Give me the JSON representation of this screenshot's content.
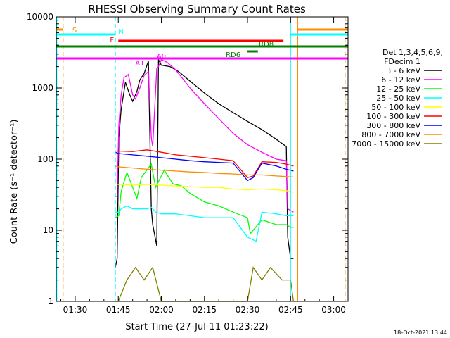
{
  "chart_data": {
    "type": "line",
    "title": "RHESSI Observing Summary Count Rates",
    "xlabel": "Start Time (27-Jul-11 01:23:22)",
    "ylabel": "Count Rate (s⁻¹ detector⁻¹)",
    "yscale": "log",
    "xlim_minutes": [
      83.4,
      185
    ],
    "ylim": [
      1,
      10000
    ],
    "x_ticks": [
      {
        "label": "01:30",
        "min": 90
      },
      {
        "label": "01:45",
        "min": 105
      },
      {
        "label": "02:00",
        "min": 120
      },
      {
        "label": "02:15",
        "min": 135
      },
      {
        "label": "02:30",
        "min": 150
      },
      {
        "label": "02:45",
        "min": 165
      },
      {
        "label": "03:00",
        "min": 180
      }
    ],
    "y_ticks": [
      {
        "label": "1",
        "v": 1
      },
      {
        "label": "10",
        "v": 10
      },
      {
        "label": "100",
        "v": 100
      },
      {
        "label": "1000",
        "v": 1000
      },
      {
        "label": "10000",
        "v": 10000
      }
    ],
    "legend": {
      "placement": "right",
      "header": [
        "Det 1,3,4,5,6,9,",
        "FDecim 1"
      ]
    },
    "series": [
      {
        "name": "3 - 6 keV",
        "color": "#000000",
        "points": [
          [
            104,
            3
          ],
          [
            104.6,
            4
          ],
          [
            105.2,
            200
          ],
          [
            106,
            500
          ],
          [
            107.5,
            1200
          ],
          [
            109,
            800
          ],
          [
            110,
            650
          ],
          [
            111.5,
            900
          ],
          [
            112.5,
            1300
          ],
          [
            114,
            1600
          ],
          [
            115.5,
            2400
          ],
          [
            116.5,
            20
          ],
          [
            117,
            12
          ],
          [
            118.4,
            6
          ],
          [
            119,
            2500
          ],
          [
            120,
            2100
          ],
          [
            123,
            2000
          ],
          [
            126,
            1700
          ],
          [
            130,
            1250
          ],
          [
            135,
            850
          ],
          [
            140,
            600
          ],
          [
            145,
            450
          ],
          [
            150,
            340
          ],
          [
            155,
            260
          ],
          [
            160,
            190
          ],
          [
            163.5,
            150
          ],
          [
            164,
            8
          ],
          [
            165,
            4
          ],
          [
            166,
            4
          ]
        ]
      },
      {
        "name": "6 - 12 keV",
        "color": "#ff00ff",
        "points": [
          [
            104,
            30
          ],
          [
            104.6,
            30
          ],
          [
            105.2,
            300
          ],
          [
            106,
            800
          ],
          [
            107,
            1400
          ],
          [
            108.5,
            1550
          ],
          [
            110,
            800
          ],
          [
            111,
            700
          ],
          [
            112.5,
            1000
          ],
          [
            114,
            1500
          ],
          [
            115.5,
            1700
          ],
          [
            116.5,
            200
          ],
          [
            117,
            150
          ],
          [
            118.4,
            1900
          ],
          [
            119,
            2000
          ],
          [
            120,
            2500
          ],
          [
            122,
            2300
          ],
          [
            125,
            1800
          ],
          [
            130,
            1000
          ],
          [
            135,
            600
          ],
          [
            140,
            370
          ],
          [
            145,
            230
          ],
          [
            150,
            160
          ],
          [
            155,
            125
          ],
          [
            160,
            100
          ],
          [
            163.5,
            95
          ],
          [
            164,
            20
          ],
          [
            166,
            18
          ]
        ]
      },
      {
        "name": "12 - 25 keV",
        "color": "#00ff00",
        "points": [
          [
            104,
            15
          ],
          [
            105.2,
            16
          ],
          [
            106,
            35
          ],
          [
            108,
            65
          ],
          [
            110,
            40
          ],
          [
            111.5,
            28
          ],
          [
            113,
            55
          ],
          [
            116.5,
            85
          ],
          [
            118,
            40
          ],
          [
            121,
            70
          ],
          [
            124,
            45
          ],
          [
            127,
            42
          ],
          [
            130,
            33
          ],
          [
            135,
            25
          ],
          [
            140,
            22
          ],
          [
            145,
            18
          ],
          [
            150,
            15
          ],
          [
            151,
            9
          ],
          [
            155,
            14
          ],
          [
            160,
            12
          ],
          [
            163.5,
            12
          ],
          [
            165,
            11
          ],
          [
            166,
            11
          ]
        ]
      },
      {
        "name": "25 - 50 keV",
        "color": "#00ffff",
        "points": [
          [
            104,
            18
          ],
          [
            105.2,
            18
          ],
          [
            106,
            20
          ],
          [
            108,
            22
          ],
          [
            110,
            20
          ],
          [
            115,
            20
          ],
          [
            116.5,
            21
          ],
          [
            118,
            18
          ],
          [
            120,
            17
          ],
          [
            125,
            17
          ],
          [
            130,
            16
          ],
          [
            135,
            15
          ],
          [
            140,
            15
          ],
          [
            145,
            15
          ],
          [
            150,
            8
          ],
          [
            153,
            7
          ],
          [
            155,
            18
          ],
          [
            160,
            17
          ],
          [
            163.5,
            16
          ],
          [
            166,
            16
          ]
        ]
      },
      {
        "name": "50 - 100 keV",
        "color": "#ffff00",
        "points": [
          [
            104,
            45
          ],
          [
            105,
            44
          ],
          [
            110,
            43
          ],
          [
            115,
            44
          ],
          [
            120,
            43
          ],
          [
            125,
            42
          ],
          [
            130,
            41
          ],
          [
            135,
            40
          ],
          [
            140,
            40
          ],
          [
            145,
            38
          ],
          [
            150,
            37
          ],
          [
            155,
            38
          ],
          [
            160,
            37
          ],
          [
            163.5,
            36
          ],
          [
            166,
            34
          ]
        ]
      },
      {
        "name": "100 - 300 keV",
        "color": "#ff0000",
        "points": [
          [
            104,
            130
          ],
          [
            105,
            130
          ],
          [
            110,
            128
          ],
          [
            115,
            135
          ],
          [
            120,
            125
          ],
          [
            125,
            115
          ],
          [
            130,
            110
          ],
          [
            135,
            105
          ],
          [
            140,
            100
          ],
          [
            145,
            95
          ],
          [
            150,
            55
          ],
          [
            152,
            58
          ],
          [
            155,
            92
          ],
          [
            160,
            90
          ],
          [
            163.5,
            85
          ],
          [
            166,
            80
          ]
        ]
      },
      {
        "name": "300 - 800 keV",
        "color": "#0000ff",
        "points": [
          [
            104,
            125
          ],
          [
            105,
            120
          ],
          [
            110,
            115
          ],
          [
            115,
            110
          ],
          [
            120,
            105
          ],
          [
            125,
            100
          ],
          [
            130,
            95
          ],
          [
            135,
            92
          ],
          [
            140,
            90
          ],
          [
            145,
            88
          ],
          [
            150,
            50
          ],
          [
            152,
            55
          ],
          [
            155,
            88
          ],
          [
            160,
            80
          ],
          [
            163.5,
            72
          ],
          [
            166,
            68
          ]
        ]
      },
      {
        "name": "800 - 7000 keV",
        "color": "#ff8c00",
        "points": [
          [
            104,
            80
          ],
          [
            105,
            78
          ],
          [
            110,
            75
          ],
          [
            115,
            72
          ],
          [
            120,
            70
          ],
          [
            125,
            68
          ],
          [
            130,
            66
          ],
          [
            135,
            65
          ],
          [
            140,
            63
          ],
          [
            145,
            62
          ],
          [
            150,
            60
          ],
          [
            155,
            60
          ],
          [
            160,
            58
          ],
          [
            163.5,
            57
          ],
          [
            166,
            56
          ]
        ]
      },
      {
        "name": "7000 - 15000 keV",
        "color": "#808000",
        "points": [
          [
            104,
            1
          ],
          [
            105,
            1
          ],
          [
            108,
            2
          ],
          [
            111,
            3
          ],
          [
            114,
            2
          ],
          [
            117,
            3
          ],
          [
            120,
            1
          ],
          [
            150,
            1
          ],
          [
            152,
            3
          ],
          [
            155,
            2
          ],
          [
            158,
            3
          ],
          [
            162,
            2
          ],
          [
            165,
            2
          ],
          [
            166,
            1
          ]
        ]
      }
    ],
    "flags": [
      {
        "label": "S",
        "color": "#ff8c00",
        "spans": [
          [
            83.4,
            85.8
          ],
          [
            167.5,
            185
          ]
        ]
      },
      {
        "label": "N",
        "color": "#00ffff",
        "spans": [
          [
            83.4,
            104
          ],
          [
            165,
            185
          ]
        ]
      },
      {
        "label": "F",
        "color": "#ff0000",
        "spans": [
          [
            105,
            162.5
          ]
        ]
      },
      {
        "label": "RD8",
        "color": "#008000",
        "spans": [
          [
            83.4,
            185
          ]
        ]
      },
      {
        "label": "RD6",
        "color": "#008000",
        "spans": [
          [
            150,
            153.6
          ]
        ]
      },
      {
        "label": "A1",
        "color": "#ff00ff",
        "spans": [
          [
            83.4,
            116.7
          ]
        ]
      },
      {
        "label": "A0",
        "color": "#ff00ff",
        "spans": [
          [
            116.7,
            185
          ]
        ]
      }
    ],
    "vlines": [
      {
        "min": 83.6,
        "color": "#00ffff",
        "style": "solid"
      },
      {
        "min": 85.8,
        "color": "#ff8c00",
        "style": "dashed"
      },
      {
        "min": 104,
        "color": "#00ffff",
        "style": "dashed"
      },
      {
        "min": 165,
        "color": "#00ffff",
        "style": "solid"
      },
      {
        "min": 167.5,
        "color": "#ff8c00",
        "style": "solid"
      },
      {
        "min": 184,
        "color": "#ff8c00",
        "style": "dashed"
      }
    ]
  },
  "footer": {
    "date_stamp": "18-Oct-2021 13:44"
  }
}
